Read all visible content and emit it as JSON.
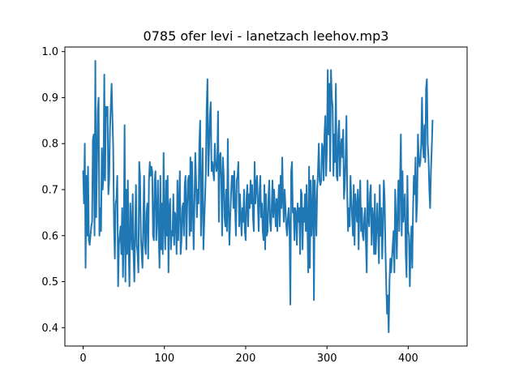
{
  "chart_data": {
    "type": "line",
    "title": "0785 ofer levi - lanetzach leehov.mp3",
    "xlabel": "",
    "ylabel": "",
    "xlim": [
      -22.5,
      472.5
    ],
    "ylim": [
      0.36,
      1.01
    ],
    "x_ticks": [
      0,
      100,
      200,
      300,
      400
    ],
    "y_ticks": [
      0.4,
      0.5,
      0.6,
      0.7,
      0.8,
      0.9,
      1.0
    ],
    "x_tick_labels": [
      "0",
      "100",
      "200",
      "300",
      "400"
    ],
    "y_tick_labels": [
      "0.4",
      "0.5",
      "0.6",
      "0.7",
      "0.8",
      "0.9",
      "1.0"
    ],
    "grid": false,
    "legend": "none",
    "series": [
      {
        "color": "#1f77b4",
        "x_start": 0,
        "x_step": 1,
        "values": [
          0.74,
          0.67,
          0.8,
          0.53,
          0.73,
          0.6,
          0.75,
          0.59,
          0.58,
          0.6,
          0.62,
          0.63,
          0.81,
          0.82,
          0.6,
          0.98,
          0.64,
          0.75,
          0.87,
          0.9,
          0.6,
          0.66,
          0.61,
          0.79,
          0.7,
          0.73,
          0.95,
          0.72,
          0.88,
          0.86,
          0.88,
          0.69,
          0.72,
          0.83,
          0.88,
          0.93,
          0.86,
          0.79,
          0.62,
          0.55,
          0.67,
          0.68,
          0.73,
          0.49,
          0.58,
          0.6,
          0.62,
          0.56,
          0.66,
          0.51,
          0.6,
          0.84,
          0.5,
          0.7,
          0.56,
          0.72,
          0.57,
          0.49,
          0.67,
          0.62,
          0.57,
          0.69,
          0.56,
          0.5,
          0.61,
          0.71,
          0.58,
          0.56,
          0.52,
          0.76,
          0.73,
          0.6,
          0.56,
          0.53,
          0.63,
          0.73,
          0.58,
          0.56,
          0.65,
          0.67,
          0.55,
          0.72,
          0.76,
          0.73,
          0.75,
          0.74,
          0.6,
          0.59,
          0.72,
          0.74,
          0.59,
          0.64,
          0.72,
          0.6,
          0.53,
          0.73,
          0.57,
          0.67,
          0.56,
          0.78,
          0.63,
          0.57,
          0.72,
          0.6,
          0.73,
          0.52,
          0.66,
          0.68,
          0.57,
          0.61,
          0.6,
          0.69,
          0.58,
          0.65,
          0.64,
          0.56,
          0.72,
          0.59,
          0.67,
          0.74,
          0.56,
          0.59,
          0.66,
          0.67,
          0.6,
          0.71,
          0.73,
          0.57,
          0.66,
          0.72,
          0.73,
          0.6,
          0.77,
          0.61,
          0.76,
          0.66,
          0.57,
          0.67,
          0.78,
          0.72,
          0.64,
          0.7,
          0.67,
          0.8,
          0.85,
          0.6,
          0.68,
          0.79,
          0.57,
          0.63,
          0.68,
          0.74,
          0.88,
          0.94,
          0.73,
          0.79,
          0.86,
          0.89,
          0.74,
          0.76,
          0.74,
          0.72,
          0.8,
          0.76,
          0.74,
          0.75,
          0.87,
          0.63,
          0.77,
          0.78,
          0.72,
          0.6,
          0.77,
          0.73,
          0.64,
          0.62,
          0.7,
          0.61,
          0.81,
          0.66,
          0.58,
          0.64,
          0.69,
          0.73,
          0.73,
          0.66,
          0.74,
          0.66,
          0.6,
          0.72,
          0.73,
          0.76,
          0.62,
          0.69,
          0.64,
          0.6,
          0.66,
          0.63,
          0.7,
          0.61,
          0.59,
          0.68,
          0.71,
          0.62,
          0.69,
          0.66,
          0.72,
          0.67,
          0.71,
          0.64,
          0.61,
          0.76,
          0.67,
          0.71,
          0.73,
          0.67,
          0.61,
          0.69,
          0.73,
          0.64,
          0.67,
          0.61,
          0.59,
          0.71,
          0.57,
          0.69,
          0.6,
          0.61,
          0.68,
          0.72,
          0.63,
          0.61,
          0.66,
          0.72,
          0.64,
          0.7,
          0.66,
          0.62,
          0.68,
          0.61,
          0.67,
          0.71,
          0.62,
          0.73,
          0.66,
          0.77,
          0.68,
          0.63,
          0.7,
          0.66,
          0.62,
          0.6,
          0.64,
          0.66,
          0.61,
          0.45,
          0.74,
          0.76,
          0.65,
          0.66,
          0.59,
          0.66,
          0.65,
          0.58,
          0.67,
          0.63,
          0.66,
          0.56,
          0.7,
          0.69,
          0.57,
          0.66,
          0.63,
          0.69,
          0.61,
          0.71,
          0.62,
          0.52,
          0.75,
          0.53,
          0.72,
          0.6,
          0.65,
          0.73,
          0.46,
          0.72,
          0.66,
          0.6,
          0.7,
          0.74,
          0.8,
          0.72,
          0.71,
          0.72,
          0.8,
          0.79,
          0.72,
          0.82,
          0.86,
          0.73,
          0.79,
          0.96,
          0.82,
          0.93,
          0.74,
          0.96,
          0.9,
          0.88,
          0.73,
          0.82,
          0.76,
          0.93,
          0.73,
          0.72,
          0.82,
          0.85,
          0.73,
          0.79,
          0.81,
          0.77,
          0.83,
          0.68,
          0.71,
          0.77,
          0.86,
          0.69,
          0.61,
          0.66,
          0.62,
          0.73,
          0.68,
          0.64,
          0.6,
          0.71,
          0.58,
          0.69,
          0.66,
          0.63,
          0.7,
          0.57,
          0.67,
          0.72,
          0.61,
          0.66,
          0.6,
          0.59,
          0.64,
          0.66,
          0.58,
          0.52,
          0.72,
          0.64,
          0.62,
          0.69,
          0.71,
          0.58,
          0.66,
          0.64,
          0.56,
          0.69,
          0.56,
          0.61,
          0.67,
          0.61,
          0.54,
          0.71,
          0.6,
          0.66,
          0.55,
          0.62,
          0.72,
          0.68,
          0.57,
          0.49,
          0.43,
          0.47,
          0.39,
          0.5,
          0.55,
          0.52,
          0.55,
          0.58,
          0.61,
          0.52,
          0.7,
          0.63,
          0.55,
          0.66,
          0.72,
          0.61,
          0.72,
          0.82,
          0.6,
          0.74,
          0.63,
          0.66,
          0.69,
          0.56,
          0.51,
          0.73,
          0.61,
          0.6,
          0.49,
          0.57,
          0.62,
          0.53,
          0.66,
          0.73,
          0.69,
          0.77,
          0.63,
          0.67,
          0.82,
          0.77,
          0.75,
          0.76,
          0.8,
          0.9,
          0.8,
          0.77,
          0.84,
          0.76,
          0.92,
          0.94,
          0.8,
          0.77,
          0.7,
          0.66,
          0.74,
          0.79,
          0.85
        ]
      }
    ]
  }
}
